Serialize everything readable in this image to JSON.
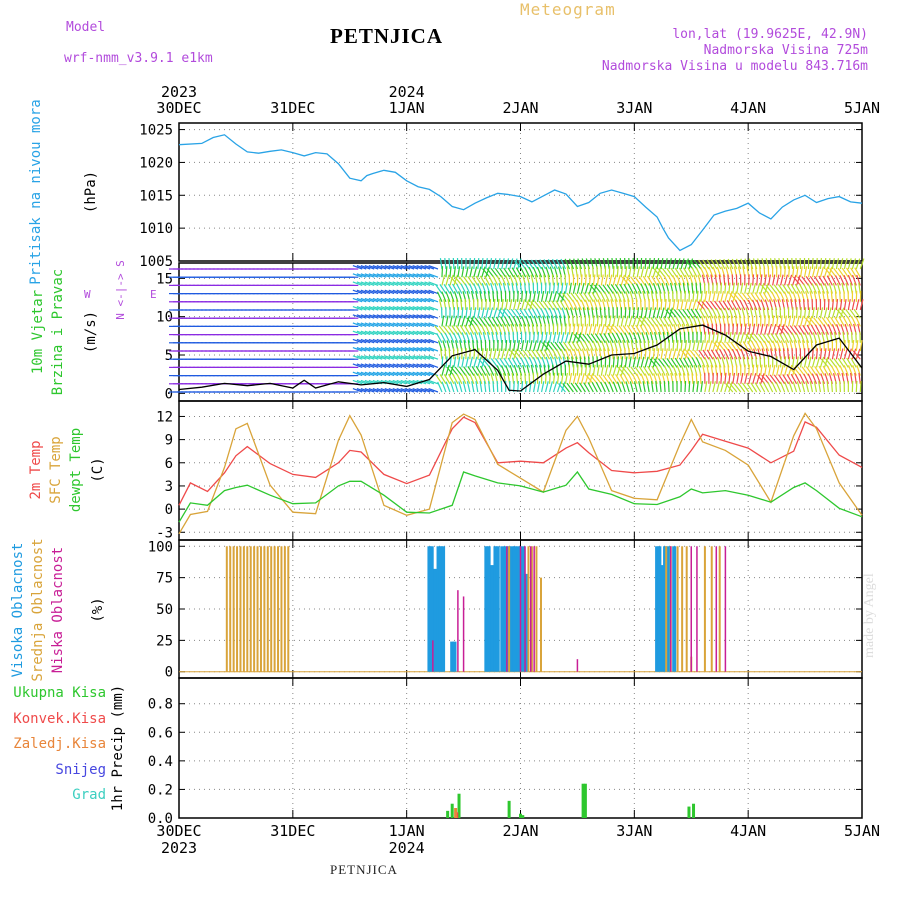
{
  "header": {
    "model_label": "Model",
    "model_name": "wrf-nmm_v3.9.1 e1km",
    "station": "PETNJICA",
    "product": "Meteogram",
    "coords": "lon,lat (19.9625E, 42.9N)",
    "elevation": "Nadmorska Visina 725m",
    "model_elevation": "Nadmorska Visina u modelu 843.716m",
    "footer_station": "PETNJICA",
    "credit": "made by Angel"
  },
  "colors": {
    "pressure": "#29a3e6",
    "temp2m": "#ef4a4a",
    "sfc": "#d9a43a",
    "dewpt": "#2ec72e",
    "high_cloud": "#1f9be0",
    "mid_cloud": "#d9a43a",
    "low_cloud": "#c81e96",
    "precip": "#2ec72e",
    "conv": "#ef4a4a",
    "frz": "#e8853a",
    "snow": "#4747e0",
    "grad": "#3ccfc0",
    "violet": "#b24bdc"
  },
  "chart_data": [
    {
      "type": "line",
      "title": "Pritisak na nivou mora",
      "ylabel": "(hPa)",
      "xlim": [
        0,
        6
      ],
      "ylim": [
        1005,
        1026
      ],
      "yticks": [
        1005,
        1010,
        1015,
        1020,
        1025
      ],
      "x_top_ticks": [
        "30DEC",
        "31DEC",
        "1JAN",
        "2JAN",
        "3JAN",
        "4JAN",
        "5JAN"
      ],
      "year_labels": [
        "2023",
        "2024"
      ],
      "series": [
        {
          "name": "Pritisak na nivou mora",
          "x": [
            0,
            0.2,
            0.3,
            0.4,
            0.5,
            0.6,
            0.7,
            0.8,
            0.9,
            1.0,
            1.1,
            1.2,
            1.3,
            1.4,
            1.5,
            1.6,
            1.65,
            1.7,
            1.8,
            1.9,
            2.0,
            2.1,
            2.2,
            2.3,
            2.4,
            2.5,
            2.6,
            2.7,
            2.8,
            2.9,
            3.0,
            3.1,
            3.2,
            3.3,
            3.4,
            3.5,
            3.6,
            3.7,
            3.8,
            3.9,
            4.0,
            4.1,
            4.2,
            4.25,
            4.3,
            4.4,
            4.5,
            4.6,
            4.7,
            4.8,
            4.9,
            5.0,
            5.1,
            5.2,
            5.3,
            5.4,
            5.5,
            5.6,
            5.7,
            5.8,
            5.9,
            6.0
          ],
          "y": [
            1022.7,
            1022.9,
            1023.8,
            1024.2,
            1022.8,
            1021.6,
            1021.4,
            1021.7,
            1021.9,
            1021.5,
            1021.0,
            1021.5,
            1021.3,
            1019.8,
            1017.6,
            1017.2,
            1018.0,
            1018.3,
            1018.8,
            1018.5,
            1017.2,
            1016.3,
            1015.9,
            1014.8,
            1013.3,
            1012.8,
            1013.8,
            1014.6,
            1015.3,
            1015.1,
            1014.8,
            1014.0,
            1014.9,
            1015.8,
            1015.2,
            1013.3,
            1013.9,
            1015.3,
            1015.8,
            1015.3,
            1014.8,
            1013.2,
            1011.7,
            1010.0,
            1008.5,
            1006.6,
            1007.5,
            1009.7,
            1012.0,
            1012.6,
            1013.0,
            1013.8,
            1012.3,
            1011.4,
            1013.2,
            1014.3,
            1015.0,
            1013.9,
            1014.5,
            1014.8,
            1014.0,
            1013.8
          ]
        }
      ]
    },
    {
      "type": "line",
      "title": "10m Vjetar Brzina i Pravac",
      "ylabel": "(m/s)",
      "direction_labels": [
        "N",
        "<--",
        "-->",
        "S",
        "W",
        "E"
      ],
      "xlim": [
        0,
        6
      ],
      "ylim": [
        -1,
        17
      ],
      "yticks": [
        0,
        5,
        10,
        15
      ],
      "series": [
        {
          "name": "10m Vjetar",
          "x": [
            0,
            0.2,
            0.4,
            0.6,
            0.8,
            1.0,
            1.1,
            1.2,
            1.4,
            1.6,
            1.8,
            2.0,
            2.2,
            2.4,
            2.6,
            2.8,
            2.9,
            3.0,
            3.2,
            3.4,
            3.6,
            3.8,
            4.0,
            4.2,
            4.4,
            4.6,
            4.8,
            5.0,
            5.2,
            5.4,
            5.6,
            5.8,
            6.0
          ],
          "y": [
            0.5,
            0.8,
            1.3,
            1.0,
            1.3,
            0.7,
            1.7,
            0.7,
            1.5,
            1.1,
            1.4,
            0.9,
            1.8,
            4.9,
            5.7,
            3.0,
            0.4,
            0.3,
            2.5,
            4.2,
            3.8,
            5.0,
            5.2,
            6.3,
            8.4,
            8.9,
            7.6,
            5.5,
            4.8,
            3.1,
            6.3,
            7.2,
            3.3
          ]
        }
      ]
    },
    {
      "type": "line",
      "title": "2m Temp / SFC Temp / dewpt Temp",
      "ylabel": "(C)",
      "xlim": [
        0,
        6
      ],
      "ylim": [
        -4,
        14
      ],
      "yticks": [
        -3,
        0,
        3,
        6,
        9,
        12
      ],
      "series": [
        {
          "name": "2m Temp",
          "x": [
            0,
            0.1,
            0.25,
            0.4,
            0.5,
            0.6,
            0.8,
            1.0,
            1.2,
            1.4,
            1.5,
            1.6,
            1.8,
            2.0,
            2.2,
            2.4,
            2.5,
            2.6,
            2.8,
            3.0,
            3.2,
            3.4,
            3.5,
            3.6,
            3.8,
            4.0,
            4.2,
            4.4,
            4.5,
            4.6,
            4.8,
            5.0,
            5.2,
            5.4,
            5.5,
            5.6,
            5.8,
            6.0
          ],
          "y": [
            0.5,
            3.4,
            2.3,
            4.7,
            6.9,
            8.1,
            5.9,
            4.5,
            4.1,
            6.0,
            7.6,
            7.4,
            4.5,
            3.3,
            4.4,
            10.4,
            11.9,
            11.2,
            6.0,
            6.2,
            6.0,
            7.9,
            8.6,
            7.3,
            5.0,
            4.7,
            4.9,
            5.7,
            7.6,
            9.7,
            8.8,
            7.9,
            6.0,
            7.5,
            11.3,
            10.6,
            7.0,
            5.4
          ]
        },
        {
          "name": "SFC Temp",
          "x": [
            0,
            0.1,
            0.25,
            0.4,
            0.5,
            0.6,
            0.8,
            1.0,
            1.2,
            1.4,
            1.5,
            1.6,
            1.8,
            2.0,
            2.2,
            2.4,
            2.5,
            2.6,
            2.8,
            3.0,
            3.2,
            3.4,
            3.5,
            3.6,
            3.8,
            4.0,
            4.2,
            4.4,
            4.5,
            4.6,
            4.8,
            5.0,
            5.2,
            5.4,
            5.5,
            5.6,
            5.8,
            6.0
          ],
          "y": [
            -3.2,
            -0.7,
            -0.3,
            5.4,
            10.4,
            11.1,
            3.1,
            -0.4,
            -0.6,
            8.9,
            12.1,
            9.6,
            0.5,
            -0.8,
            0.0,
            11.2,
            12.3,
            11.6,
            5.8,
            4.0,
            2.2,
            10.2,
            12.0,
            9.2,
            2.4,
            1.4,
            1.2,
            8.4,
            11.6,
            8.7,
            7.6,
            5.7,
            0.9,
            9.5,
            12.4,
            10.4,
            3.4,
            -0.8
          ]
        },
        {
          "name": "dewpt Temp",
          "x": [
            0,
            0.1,
            0.25,
            0.4,
            0.5,
            0.6,
            0.8,
            1.0,
            1.2,
            1.4,
            1.5,
            1.6,
            1.8,
            2.0,
            2.2,
            2.4,
            2.5,
            2.6,
            2.8,
            3.0,
            3.2,
            3.4,
            3.5,
            3.6,
            3.8,
            4.0,
            4.2,
            4.4,
            4.5,
            4.6,
            4.8,
            5.0,
            5.2,
            5.4,
            5.5,
            5.6,
            5.8,
            6.0
          ],
          "y": [
            -1.7,
            0.8,
            0.5,
            2.4,
            2.8,
            3.1,
            1.8,
            0.7,
            0.8,
            3.0,
            3.6,
            3.6,
            1.8,
            -0.4,
            -0.5,
            0.5,
            4.8,
            4.3,
            3.4,
            3.0,
            2.2,
            3.1,
            4.8,
            2.6,
            1.9,
            0.7,
            0.6,
            1.6,
            2.6,
            2.1,
            2.4,
            1.8,
            0.9,
            2.8,
            3.4,
            2.4,
            0.1,
            -1.0
          ]
        }
      ]
    },
    {
      "type": "bar",
      "title": "Visoka Oblacnost / Srednja Oblacnost / Niska Oblacnost",
      "ylabel": "(%)",
      "xlim": [
        0,
        6
      ],
      "ylim": [
        -5,
        105
      ],
      "yticks": [
        0,
        25,
        50,
        75,
        100
      ],
      "series": [
        {
          "name": "Visoka Oblacnost",
          "x": [
            2.2,
            2.22,
            2.25,
            2.28,
            2.3,
            2.32,
            2.4,
            2.42,
            2.7,
            2.72,
            2.75,
            2.78,
            2.8,
            2.84,
            2.87,
            2.9,
            2.93,
            2.95,
            2.98,
            3.02,
            3.05,
            4.2,
            4.22,
            4.25,
            4.27,
            4.3,
            4.35
          ],
          "y": [
            100,
            100,
            82,
            100,
            100,
            100,
            24,
            24,
            100,
            100,
            85,
            100,
            100,
            100,
            100,
            100,
            100,
            100,
            100,
            100,
            78,
            100,
            100,
            85,
            100,
            100,
            100
          ]
        },
        {
          "name": "Srednja Oblacnost",
          "x": [
            0.42,
            0.45,
            0.48,
            0.51,
            0.54,
            0.57,
            0.6,
            0.63,
            0.66,
            0.69,
            0.72,
            0.75,
            0.78,
            0.81,
            0.84,
            0.87,
            0.9,
            0.93,
            0.96,
            2.9,
            3.07,
            3.1,
            3.14,
            3.18,
            4.28,
            4.32,
            4.38,
            4.42,
            4.46,
            4.5,
            4.62,
            4.68,
            4.75
          ],
          "y": [
            100,
            100,
            100,
            100,
            100,
            100,
            100,
            100,
            100,
            100,
            100,
            100,
            100,
            100,
            100,
            100,
            100,
            100,
            100,
            100,
            100,
            100,
            100,
            75,
            100,
            100,
            100,
            100,
            100,
            12,
            100,
            100,
            100
          ]
        },
        {
          "name": "Niska Oblacnost",
          "x": [
            2.23,
            2.45,
            2.5,
            2.88,
            3.0,
            3.04,
            3.09,
            3.12,
            3.5,
            4.32,
            4.5,
            4.55,
            4.72,
            4.8
          ],
          "y": [
            25,
            65,
            60,
            100,
            100,
            100,
            100,
            100,
            10,
            100,
            100,
            100,
            100,
            100
          ]
        }
      ]
    },
    {
      "type": "bar",
      "title": "Ukupna Kisa / Konvek.Kisa / Zaledj.Kisa / Snijeg / Grad",
      "ylabel": "1hr Precip (mm)",
      "xlim": [
        0,
        6
      ],
      "ylim": [
        0,
        0.98
      ],
      "yticks": [
        0,
        0.2,
        0.4,
        0.6,
        0.8
      ],
      "x_bottom_ticks": [
        "30DEC",
        "31DEC",
        "1JAN",
        "2JAN",
        "3JAN",
        "4JAN",
        "5JAN"
      ],
      "series": [
        {
          "name": "Ukupna Kisa",
          "x": [
            2.36,
            2.4,
            2.46,
            2.9,
            3.0,
            3.02,
            3.55,
            3.57,
            4.48,
            4.52
          ],
          "y": [
            0.05,
            0.1,
            0.17,
            0.12,
            0.03,
            0.02,
            0.24,
            0.24,
            0.08,
            0.1
          ]
        },
        {
          "name": "Konvek.Kisa",
          "x": [
            2.44
          ],
          "y": [
            0.04
          ]
        },
        {
          "name": "Zaledj.Kisa",
          "x": [
            2.43
          ],
          "y": [
            0.07
          ]
        }
      ],
      "legend": [
        "Ukupna Kisa",
        "Konvek.Kisa",
        "Zaledj.Kisa",
        "Snijeg",
        "Grad"
      ]
    }
  ]
}
